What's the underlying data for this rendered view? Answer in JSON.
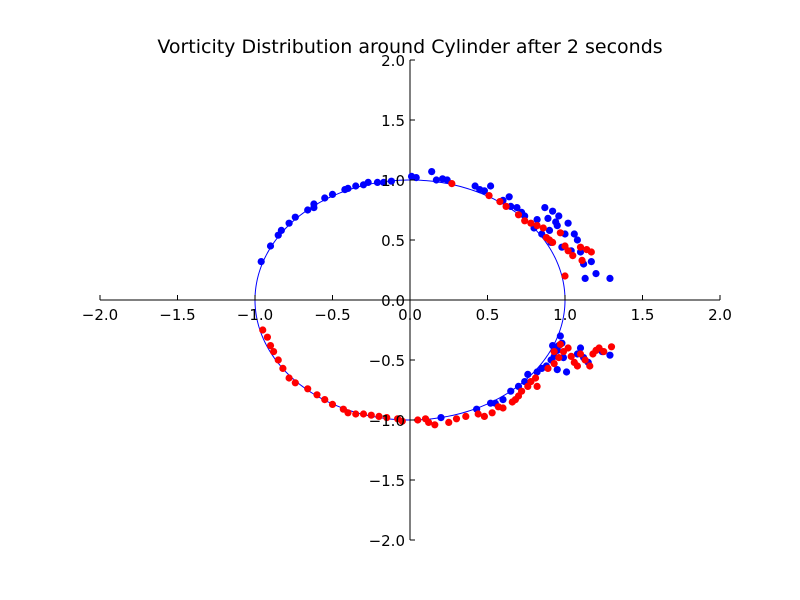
{
  "chart_data": {
    "type": "scatter",
    "title": "Vorticity Distribution around Cylinder after 2 seconds",
    "xlabel": "",
    "ylabel": "",
    "xlim": [
      -2.0,
      2.0
    ],
    "ylim": [
      -2.0,
      2.0
    ],
    "grid": false,
    "spines": "centered",
    "x_ticks": [
      "−2.0",
      "−1.5",
      "−1.0",
      "−0.5",
      "0.0",
      "0.5",
      "1.0",
      "1.5",
      "2.0"
    ],
    "y_ticks": [
      "−2.0",
      "−1.5",
      "−1.0",
      "−0.5",
      "0.0",
      "0.5",
      "1.0",
      "1.5",
      "2.0"
    ],
    "colors": {
      "blue": "#0000ff",
      "red": "#ff0000",
      "axis": "#000000"
    },
    "cylinder": {
      "center": [
        0,
        0
      ],
      "radius": 1.0,
      "color": "#0000ff"
    },
    "series": [
      {
        "color": "#0000ff",
        "points": [
          [
            -0.96,
            0.32
          ],
          [
            -0.9,
            0.45
          ],
          [
            -0.85,
            0.54
          ],
          [
            -0.83,
            0.58
          ],
          [
            -0.78,
            0.64
          ],
          [
            -0.74,
            0.69
          ],
          [
            -0.66,
            0.75
          ],
          [
            -0.62,
            0.77
          ],
          [
            -0.62,
            0.8
          ],
          [
            -0.55,
            0.85
          ],
          [
            -0.5,
            0.88
          ],
          [
            -0.42,
            0.92
          ],
          [
            -0.4,
            0.93
          ],
          [
            -0.35,
            0.95
          ],
          [
            -0.3,
            0.96
          ],
          [
            -0.27,
            0.98
          ],
          [
            -0.21,
            0.98
          ],
          [
            -0.17,
            0.98
          ],
          [
            -0.12,
            0.99
          ],
          [
            0.01,
            1.03
          ],
          [
            0.04,
            1.02
          ],
          [
            0.14,
            1.07
          ],
          [
            0.17,
            1.0
          ],
          [
            0.21,
            1.01
          ],
          [
            0.24,
            1.0
          ],
          [
            0.42,
            0.95
          ],
          [
            0.45,
            0.92
          ],
          [
            0.48,
            0.91
          ],
          [
            0.52,
            0.95
          ],
          [
            0.6,
            0.83
          ],
          [
            0.64,
            0.86
          ],
          [
            0.65,
            0.78
          ],
          [
            0.69,
            0.77
          ],
          [
            0.72,
            0.73
          ],
          [
            0.74,
            0.7
          ],
          [
            0.8,
            0.6
          ],
          [
            0.82,
            0.67
          ],
          [
            0.85,
            0.55
          ],
          [
            0.87,
            0.77
          ],
          [
            0.89,
            0.68
          ],
          [
            0.9,
            0.58
          ],
          [
            0.91,
            0.48
          ],
          [
            0.92,
            0.74
          ],
          [
            0.94,
            0.65
          ],
          [
            0.95,
            0.62
          ],
          [
            0.96,
            0.7
          ],
          [
            0.98,
            0.44
          ],
          [
            1.0,
            0.55
          ],
          [
            1.02,
            0.64
          ],
          [
            1.04,
            0.41
          ],
          [
            1.06,
            0.55
          ],
          [
            1.08,
            0.5
          ],
          [
            1.1,
            0.4
          ],
          [
            1.12,
            0.3
          ],
          [
            1.13,
            0.18
          ],
          [
            1.17,
            0.32
          ],
          [
            1.2,
            0.22
          ],
          [
            1.29,
            0.18
          ],
          [
            0.97,
            -0.3
          ],
          [
            0.98,
            -0.36
          ],
          [
            0.96,
            -0.38
          ],
          [
            0.95,
            -0.42
          ],
          [
            0.93,
            -0.47
          ],
          [
            0.91,
            -0.5
          ],
          [
            0.88,
            -0.55
          ],
          [
            0.85,
            -0.57
          ],
          [
            0.82,
            -0.6
          ],
          [
            0.76,
            -0.62
          ],
          [
            0.74,
            -0.68
          ],
          [
            0.7,
            -0.72
          ],
          [
            0.65,
            -0.76
          ],
          [
            0.6,
            -0.83
          ],
          [
            0.55,
            -0.86
          ],
          [
            0.52,
            -0.86
          ],
          [
            0.43,
            -0.91
          ],
          [
            0.2,
            -0.98
          ],
          [
            1.1,
            -0.4
          ],
          [
            1.12,
            -0.48
          ],
          [
            1.15,
            -0.52
          ],
          [
            1.24,
            -0.43
          ],
          [
            1.29,
            -0.46
          ],
          [
            0.99,
            -0.48
          ],
          [
            1.01,
            -0.6
          ],
          [
            0.95,
            -0.58
          ],
          [
            1.08,
            -0.45
          ],
          [
            0.92,
            -0.38
          ]
        ]
      },
      {
        "color": "#ff0000",
        "points": [
          [
            0.27,
            0.97
          ],
          [
            0.51,
            0.87
          ],
          [
            0.58,
            0.82
          ],
          [
            0.62,
            0.78
          ],
          [
            0.7,
            0.71
          ],
          [
            0.74,
            0.66
          ],
          [
            0.78,
            0.64
          ],
          [
            0.82,
            0.62
          ],
          [
            0.86,
            0.6
          ],
          [
            0.88,
            0.52
          ],
          [
            0.9,
            0.5
          ],
          [
            0.92,
            0.48
          ],
          [
            0.97,
            0.56
          ],
          [
            1.0,
            0.45
          ],
          [
            1.02,
            0.41
          ],
          [
            1.05,
            0.37
          ],
          [
            1.0,
            0.2
          ],
          [
            1.1,
            0.44
          ],
          [
            1.14,
            0.42
          ],
          [
            1.17,
            0.4
          ],
          [
            1.11,
            0.33
          ],
          [
            -0.95,
            -0.25
          ],
          [
            -0.92,
            -0.31
          ],
          [
            -0.9,
            -0.38
          ],
          [
            -0.88,
            -0.43
          ],
          [
            -0.85,
            -0.5
          ],
          [
            -0.82,
            -0.57
          ],
          [
            -0.78,
            -0.65
          ],
          [
            -0.74,
            -0.69
          ],
          [
            -0.66,
            -0.74
          ],
          [
            -0.6,
            -0.79
          ],
          [
            -0.55,
            -0.83
          ],
          [
            -0.5,
            -0.87
          ],
          [
            -0.43,
            -0.91
          ],
          [
            -0.4,
            -0.94
          ],
          [
            -0.35,
            -0.95
          ],
          [
            -0.3,
            -0.95
          ],
          [
            -0.25,
            -0.96
          ],
          [
            -0.2,
            -0.97
          ],
          [
            -0.15,
            -0.98
          ],
          [
            -0.08,
            -0.99
          ],
          [
            -0.05,
            -1.01
          ],
          [
            0.05,
            -1.0
          ],
          [
            0.1,
            -0.99
          ],
          [
            0.12,
            -1.02
          ],
          [
            0.16,
            -1.04
          ],
          [
            0.25,
            -1.02
          ],
          [
            0.3,
            -0.99
          ],
          [
            0.36,
            -0.97
          ],
          [
            0.44,
            -0.95
          ],
          [
            0.48,
            -0.97
          ],
          [
            0.53,
            -0.94
          ],
          [
            0.57,
            -0.89
          ],
          [
            0.6,
            -0.9
          ],
          [
            0.66,
            -0.85
          ],
          [
            0.68,
            -0.83
          ],
          [
            0.7,
            -0.8
          ],
          [
            0.72,
            -0.76
          ],
          [
            0.76,
            -0.72
          ],
          [
            0.78,
            -0.68
          ],
          [
            0.81,
            -0.65
          ],
          [
            0.82,
            -0.72
          ],
          [
            0.89,
            -0.57
          ],
          [
            0.93,
            -0.53
          ],
          [
            0.96,
            -0.48
          ],
          [
            0.99,
            -0.43
          ],
          [
            1.02,
            -0.4
          ],
          [
            1.04,
            -0.47
          ],
          [
            1.06,
            -0.52
          ],
          [
            1.08,
            -0.55
          ],
          [
            1.1,
            -0.45
          ],
          [
            1.13,
            -0.5
          ],
          [
            1.16,
            -0.55
          ],
          [
            1.18,
            -0.45
          ],
          [
            1.2,
            -0.42
          ],
          [
            1.22,
            -0.4
          ],
          [
            1.25,
            -0.43
          ],
          [
            1.3,
            -0.39
          ],
          [
            0.93,
            -0.43
          ],
          [
            0.97,
            -0.37
          ]
        ]
      }
    ]
  }
}
